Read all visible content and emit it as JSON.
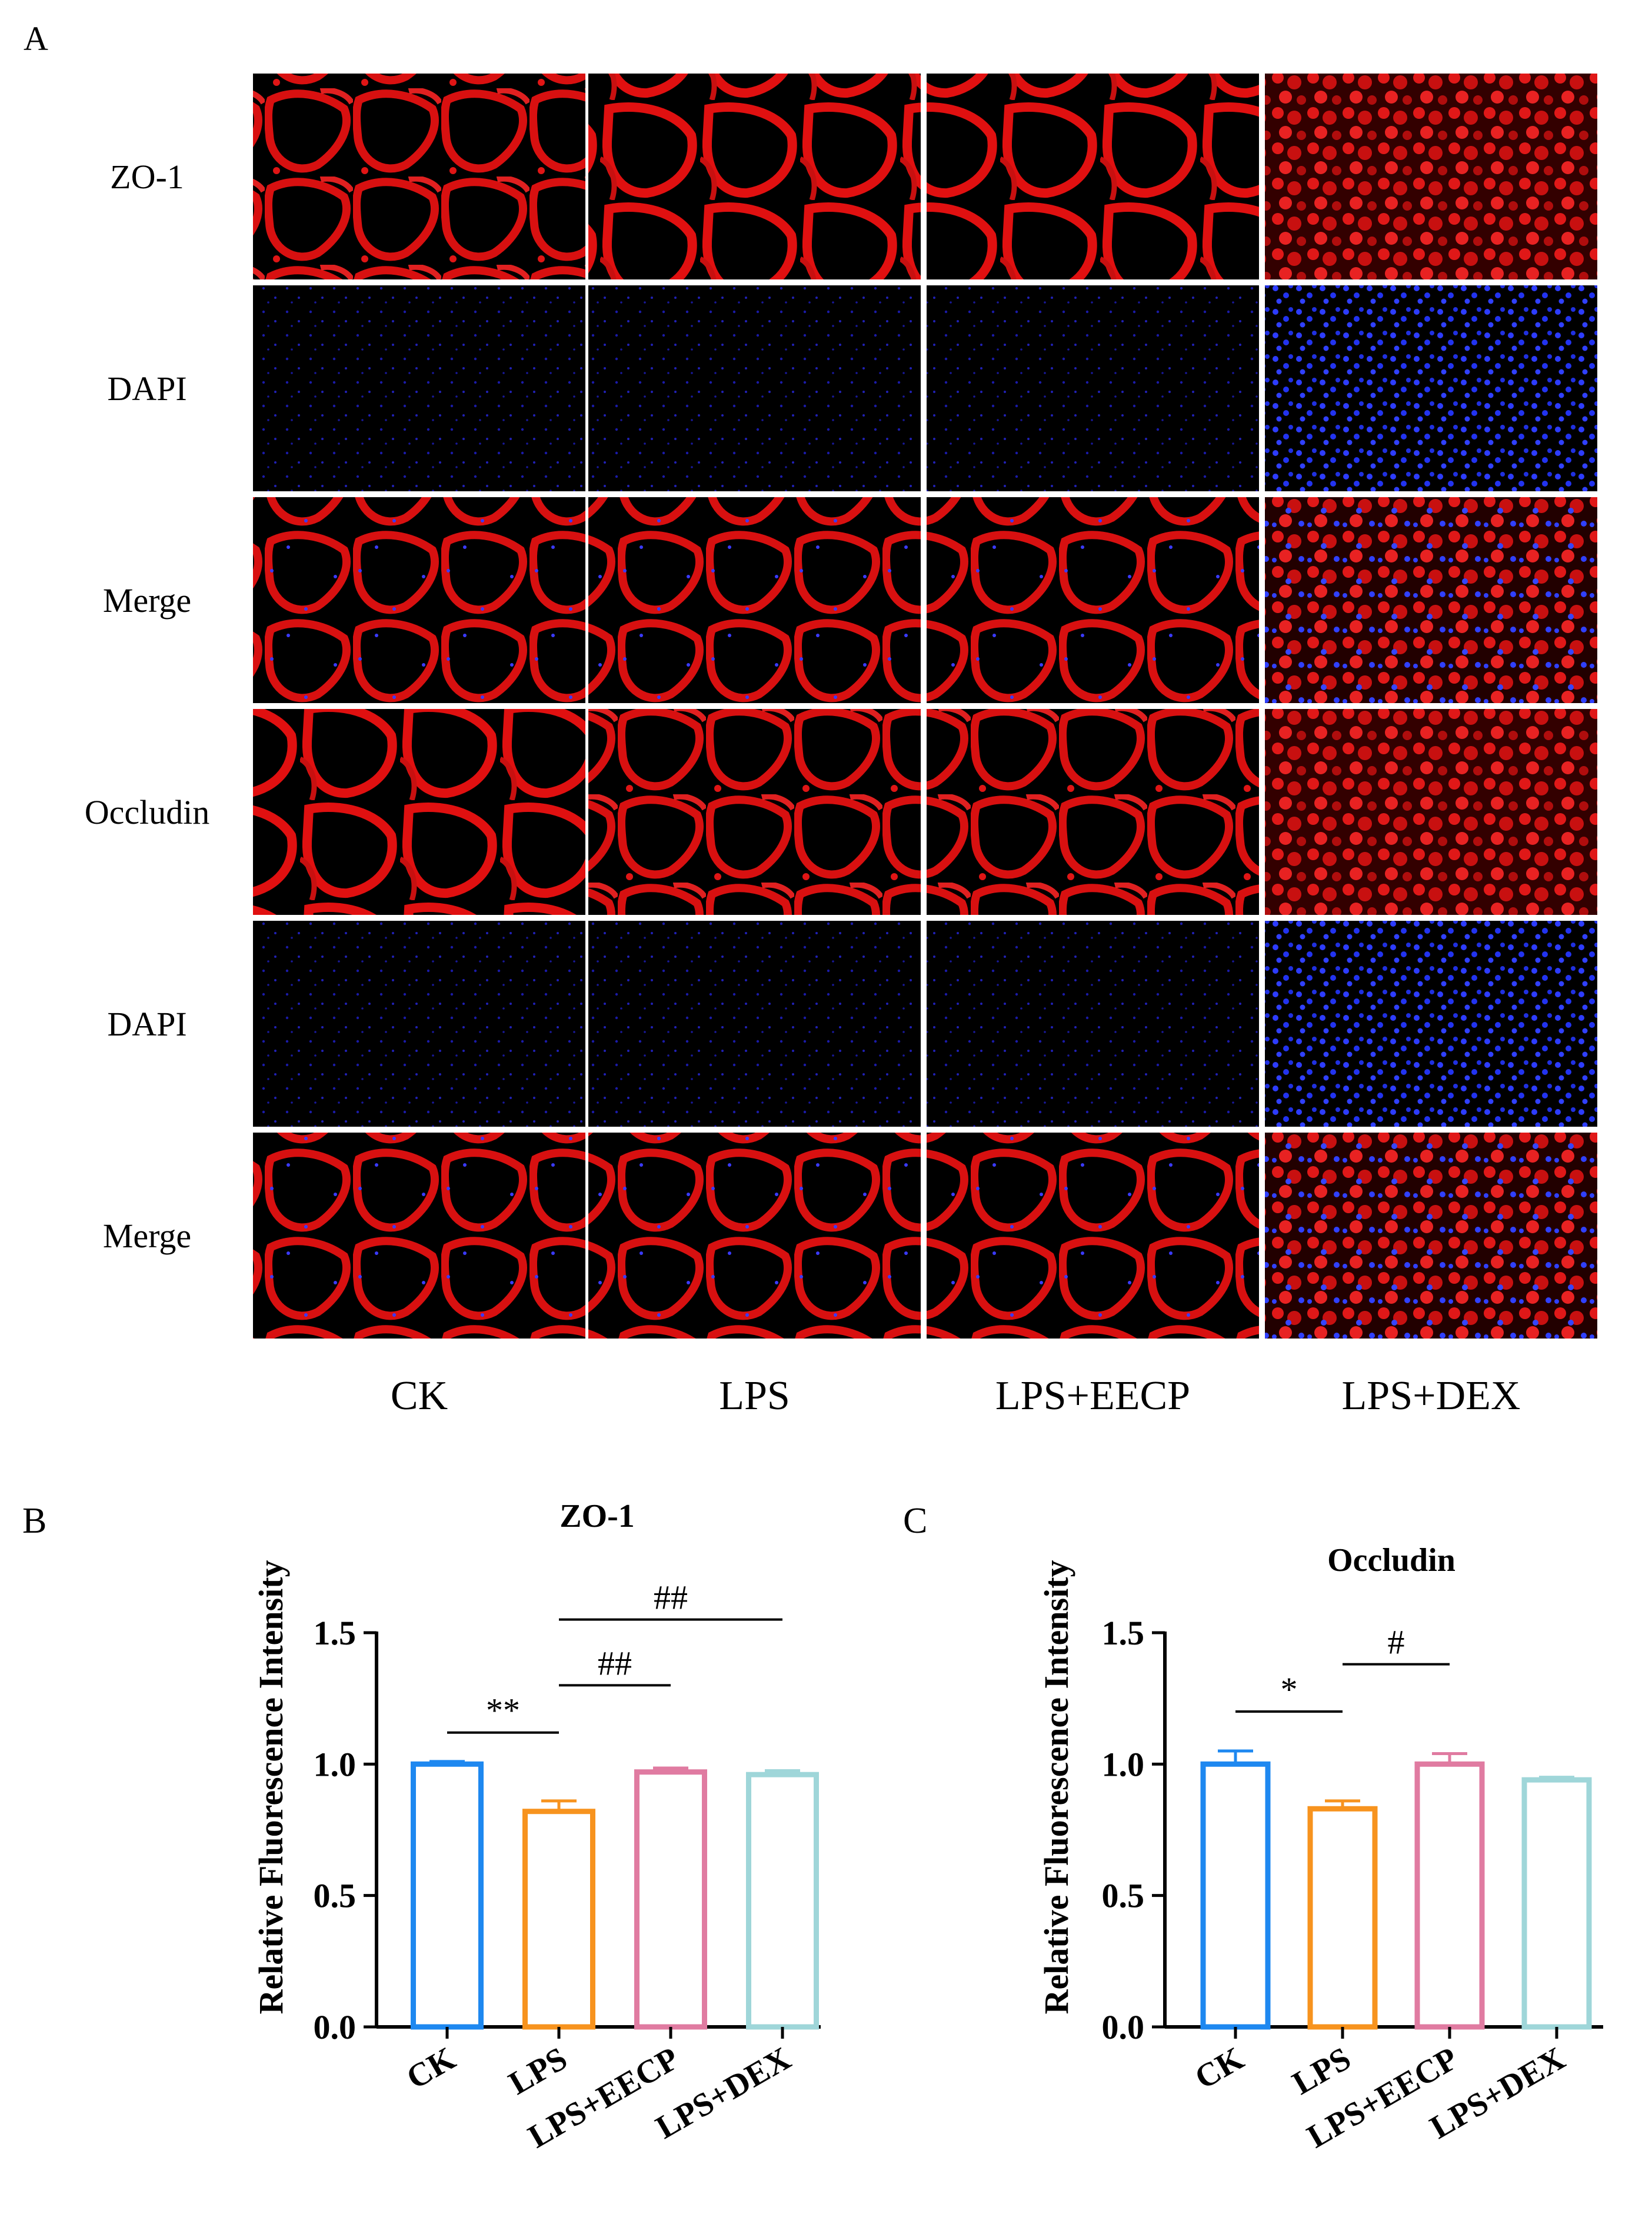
{
  "panel_a": {
    "label": "A",
    "row_labels": [
      "ZO-1",
      "DAPI",
      "Merge",
      "Occludin",
      "DAPI",
      "Merge"
    ],
    "column_labels": [
      "CK",
      "LPS",
      "LPS+EECP",
      "LPS+DEX"
    ],
    "stain_colors": {
      "zo1": "#e01010",
      "dapi": "#2533ff",
      "background": "#000000"
    }
  },
  "chart_data": [
    {
      "type": "bar",
      "panel_label": "B",
      "title": "ZO-1",
      "ylabel": "Relative Fluorescence Intensity",
      "xlabel": "",
      "categories": [
        "CK",
        "LPS",
        "LPS+EECP",
        "LPS+DEX"
      ],
      "values": [
        1.0,
        0.82,
        0.97,
        0.96
      ],
      "errors": [
        0.01,
        0.04,
        0.015,
        0.015
      ],
      "colors": [
        "#1e88f0",
        "#f7931e",
        "#e07ba1",
        "#9fd6d9"
      ],
      "ylim": [
        0,
        1.5
      ],
      "yticks": [
        "0.0",
        "0.5",
        "1.0",
        "1.5"
      ],
      "grid": false,
      "legend": "none",
      "annotations": [
        {
          "text": "**",
          "from": "CK",
          "to": "LPS",
          "level": 1.12
        },
        {
          "text": "##",
          "from": "LPS",
          "to": "LPS+EECP",
          "level": 1.3
        },
        {
          "text": "##",
          "from": "LPS",
          "to": "LPS+DEX",
          "level": 1.55
        }
      ]
    },
    {
      "type": "bar",
      "panel_label": "C",
      "title": "Occludin",
      "ylabel": "Relative Fluorescence Intensity",
      "xlabel": "",
      "categories": [
        "CK",
        "LPS",
        "LPS+EECP",
        "LPS+DEX"
      ],
      "values": [
        1.0,
        0.83,
        1.0,
        0.94
      ],
      "errors": [
        0.05,
        0.03,
        0.04,
        0.01
      ],
      "colors": [
        "#1e88f0",
        "#f7931e",
        "#e07ba1",
        "#9fd6d9"
      ],
      "ylim": [
        0,
        1.5
      ],
      "yticks": [
        "0.0",
        "0.5",
        "1.0",
        "1.5"
      ],
      "grid": false,
      "legend": "none",
      "annotations": [
        {
          "text": "*",
          "from": "CK",
          "to": "LPS",
          "level": 1.2
        },
        {
          "text": "#",
          "from": "LPS",
          "to": "LPS+EECP",
          "level": 1.38
        }
      ]
    }
  ]
}
